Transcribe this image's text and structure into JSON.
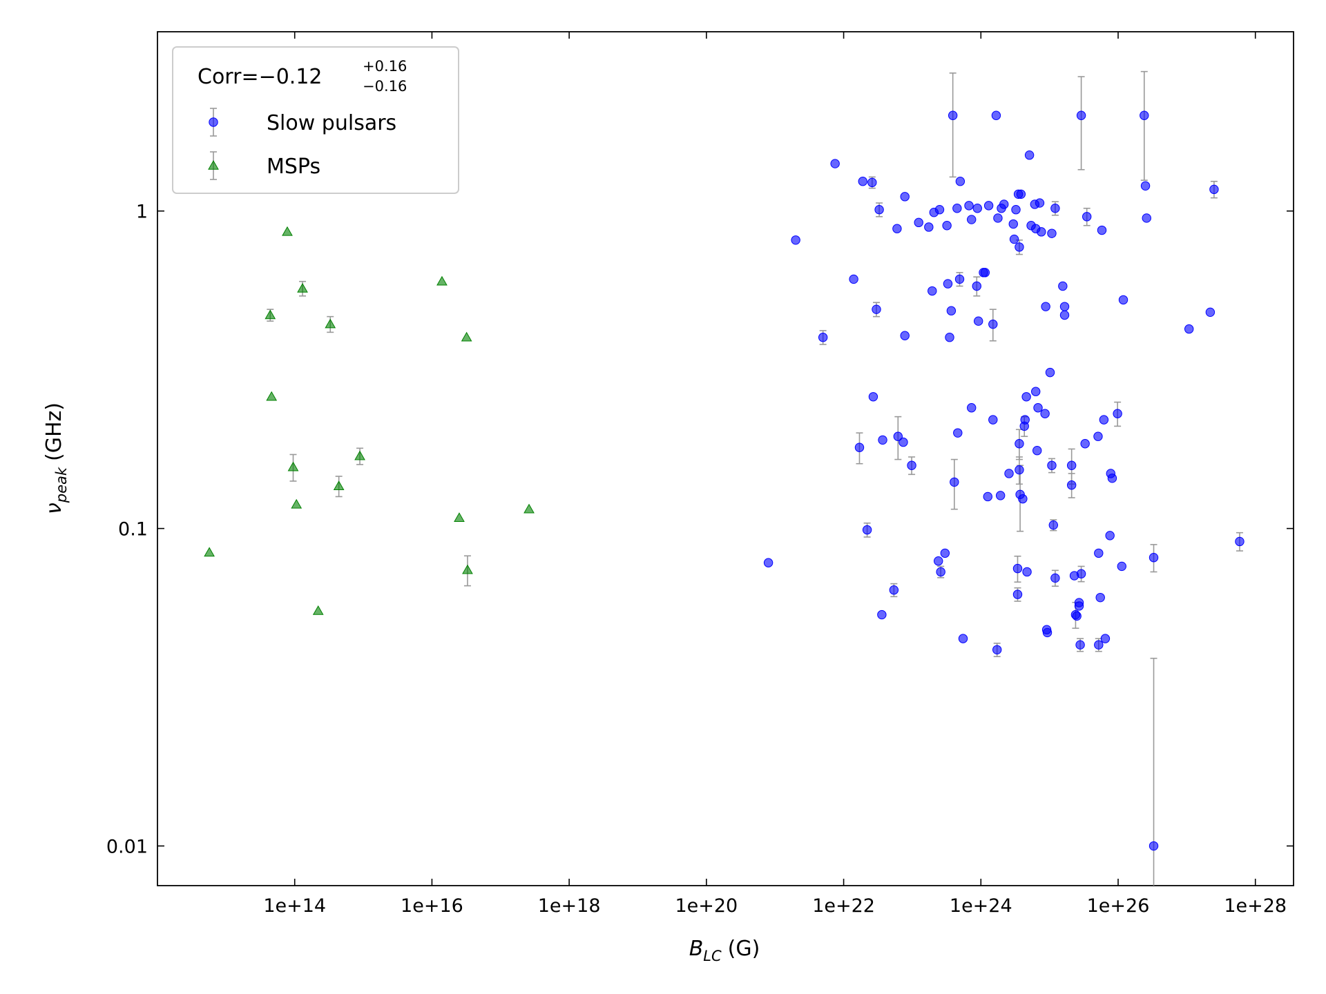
{
  "chart_data": {
    "type": "scatter",
    "xlabel": {
      "symbol": "B",
      "subscript": "LC",
      "unit": "(G)"
    },
    "ylabel": {
      "symbol": "ν",
      "subscript": "peak",
      "unit": "(GHz)"
    },
    "xscale": "log",
    "yscale": "log",
    "xlim": [
      1000000000000.0,
      3.6e+28
    ],
    "ylim": [
      0.0075,
      3.67
    ],
    "xticks": [
      {
        "value": 100000000000000.0,
        "label": "1e+14"
      },
      {
        "value": 1e+16,
        "label": "1e+16"
      },
      {
        "value": 1e+18,
        "label": "1e+18"
      },
      {
        "value": 1e+20,
        "label": "1e+20"
      },
      {
        "value": 1e+22,
        "label": "1e+22"
      },
      {
        "value": 1e+24,
        "label": "1e+24"
      },
      {
        "value": 1e+26,
        "label": "1e+26"
      },
      {
        "value": 1e+28,
        "label": "1e+28"
      }
    ],
    "yticks": [
      0.01,
      0.1,
      1
    ],
    "legend": {
      "loc": "upper left",
      "title": {
        "main": "Corr=−0.12",
        "sup": "+0.16",
        "sub": "−0.16"
      }
    },
    "series": [
      {
        "name": "Slow pulsars",
        "color": "#0000ff",
        "marker": "o",
        "x": [
          8e+20,
          2e+21,
          5e+21,
          7.5e+21,
          1.4e+22,
          1.7e+22,
          1.9e+22,
          2.2e+22,
          2.6e+22,
          2.7e+22,
          3e+22,
          3.3e+22,
          3.6e+22,
          3.7e+22,
          5.4e+22,
          6e+22,
          6.2e+22,
          7.4e+22,
          7.8e+22,
          7.8e+22,
          9.8e+22,
          1.24e+23,
          1.74e+23,
          1.95e+23,
          2.07e+23,
          2.4e+23,
          2.5e+23,
          2.6e+23,
          3e+23,
          3.2e+23,
          3.3e+23,
          3.5e+23,
          3.7e+23,
          3.9e+23,
          4.1e+23,
          4.5e+23,
          4.6e+23,
          4.9e+23,
          5e+23,
          5.5e+23,
          6.7e+23,
          7.3e+23,
          7.3e+23,
          8.7e+23,
          8.9e+23,
          9.2e+23,
          1.09e+24,
          1.15e+24,
          1.3e+24,
          1.26e+24,
          1.5e+24,
          1.5e+24,
          1.67e+24,
          1.72e+24,
          1.77e+24,
          1.93e+24,
          1.99e+24,
          2.17e+24,
          2.57e+24,
          2.97e+24,
          3.06e+24,
          3.24e+24,
          3.43e+24,
          3.43e+24,
          3.52e+24,
          3.63e+24,
          3.63e+24,
          3.63e+24,
          3.73e+24,
          3.84e+24,
          4.07e+24,
          4.3e+24,
          4.4e+24,
          4.6e+24,
          4.7e+24,
          5.1e+24,
          5.4e+24,
          6.1e+24,
          6.3e+24,
          6.3e+24,
          6.6e+24,
          6.8e+24,
          7.2e+24,
          7.6e+24,
          8.6e+24,
          8.8e+24,
          9.1e+24,
          9.3e+24,
          1.02e+25,
          1.08e+25,
          1.08e+25,
          1.14e+25,
          1.21e+25,
          1.21e+25,
          1.56e+25,
          1.66e+25,
          1.66e+25,
          2.1e+25,
          2.1e+25,
          2.3e+25,
          2.4e+25,
          2.5e+25,
          2.7e+25,
          2.7e+25,
          2.8e+25,
          2.9e+25,
          2.9e+25,
          3.3e+25,
          3.5e+25,
          5.1e+25,
          5.2e+25,
          5.2e+25,
          5.5e+25,
          5.8e+25,
          6.2e+25,
          6.5e+25,
          7.6e+25,
          7.8e+25,
          8.2e+25,
          9.8e+25,
          1.13e+26,
          1.19e+26,
          2.4e+26,
          2.5e+26,
          2.6e+26,
          3.3e+26,
          3.3e+26,
          1.08e+27,
          2.2e+27,
          2.5e+27,
          5.9e+27
        ],
        "values": [
          0.078,
          0.81,
          0.4,
          1.41,
          0.61,
          0.18,
          1.24,
          0.099,
          1.23,
          0.26,
          0.49,
          1.01,
          0.0535,
          0.19,
          0.064,
          0.88,
          0.195,
          0.187,
          1.11,
          0.405,
          0.158,
          0.92,
          0.89,
          0.56,
          0.99,
          0.079,
          1.01,
          0.073,
          0.0836,
          0.9,
          0.59,
          0.4,
          0.485,
          2.0,
          0.14,
          1.02,
          0.2,
          0.61,
          1.24,
          0.045,
          1.04,
          0.24,
          0.94,
          0.58,
          1.02,
          0.45,
          0.64,
          0.64,
          1.04,
          0.126,
          0.44,
          0.22,
          2.0,
          0.0415,
          0.95,
          0.127,
          1.02,
          1.05,
          0.149,
          0.91,
          0.815,
          1.01,
          0.0748,
          0.062,
          1.13,
          0.185,
          0.77,
          0.153,
          0.128,
          1.13,
          0.124,
          0.21,
          0.22,
          0.26,
          0.073,
          1.5,
          0.9,
          1.05,
          0.88,
          0.27,
          0.176,
          0.24,
          1.06,
          0.86,
          0.23,
          0.5,
          0.048,
          0.047,
          0.31,
          0.158,
          0.85,
          0.1025,
          0.0698,
          1.02,
          0.58,
          0.47,
          0.5,
          0.158,
          0.137,
          0.071,
          0.0535,
          0.053,
          0.0584,
          0.057,
          0.043,
          0.072,
          2.0,
          0.185,
          0.96,
          0.195,
          0.0836,
          0.043,
          0.0606,
          0.87,
          0.22,
          0.045,
          0.095,
          0.149,
          0.144,
          0.23,
          0.076,
          0.525,
          2.0,
          1.2,
          0.95,
          0.081,
          0.01,
          0.425,
          0.48,
          1.17,
          0.091
        ],
        "yerr": [
          null,
          null,
          0.02,
          null,
          null,
          0.02,
          null,
          0.005,
          0.05,
          null,
          0.025,
          0.05,
          null,
          null,
          0.003,
          null,
          0.03,
          null,
          null,
          null,
          0.01,
          null,
          null,
          null,
          null,
          null,
          null,
          0.003,
          null,
          null,
          null,
          null,
          null,
          0.72,
          0.025,
          null,
          null,
          0.03,
          null,
          null,
          null,
          null,
          null,
          0.04,
          null,
          null,
          null,
          null,
          null,
          null,
          0.05,
          null,
          null,
          0.002,
          null,
          null,
          null,
          null,
          null,
          null,
          null,
          null,
          0.007,
          0.003,
          null,
          0.02,
          0.04,
          0.015,
          0.03,
          null,
          null,
          0.015,
          null,
          null,
          null,
          null,
          null,
          null,
          null,
          null,
          null,
          null,
          null,
          null,
          null,
          null,
          null,
          null,
          null,
          0.008,
          null,
          0.004,
          0.004,
          0.05,
          null,
          null,
          null,
          0.02,
          0.012,
          null,
          0.005,
          null,
          null,
          null,
          0.002,
          0.004,
          0.65,
          null,
          0.06,
          null,
          null,
          0.002,
          null,
          null,
          null,
          null,
          null,
          null,
          null,
          0.02,
          null,
          null,
          0.75,
          null,
          null,
          0.008,
          0.029,
          null,
          null,
          0.07,
          0.006
        ]
      },
      {
        "name": "MSPs",
        "color": "#008000",
        "marker": "^",
        "x": [
          5700000000000.0,
          44000000000000.0,
          46000000000000.0,
          78000000000000.0,
          95000000000000.0,
          106000000000000.0,
          130000000000000.0,
          220000000000000.0,
          330000000000000.0,
          440000000000000.0,
          890000000000000.0,
          1.4e+16,
          2.5e+16,
          3.2e+16,
          3.3e+16,
          2.6e+17
        ],
        "values": [
          0.084,
          0.47,
          0.26,
          0.86,
          0.156,
          0.119,
          0.57,
          0.055,
          0.44,
          0.136,
          0.169,
          0.6,
          0.108,
          0.4,
          0.074,
          0.115
        ],
        "yerr": [
          null,
          0.02,
          null,
          null,
          0.015,
          null,
          0.03,
          null,
          0.025,
          0.01,
          0.01,
          null,
          null,
          null,
          0.008,
          null
        ]
      }
    ]
  }
}
